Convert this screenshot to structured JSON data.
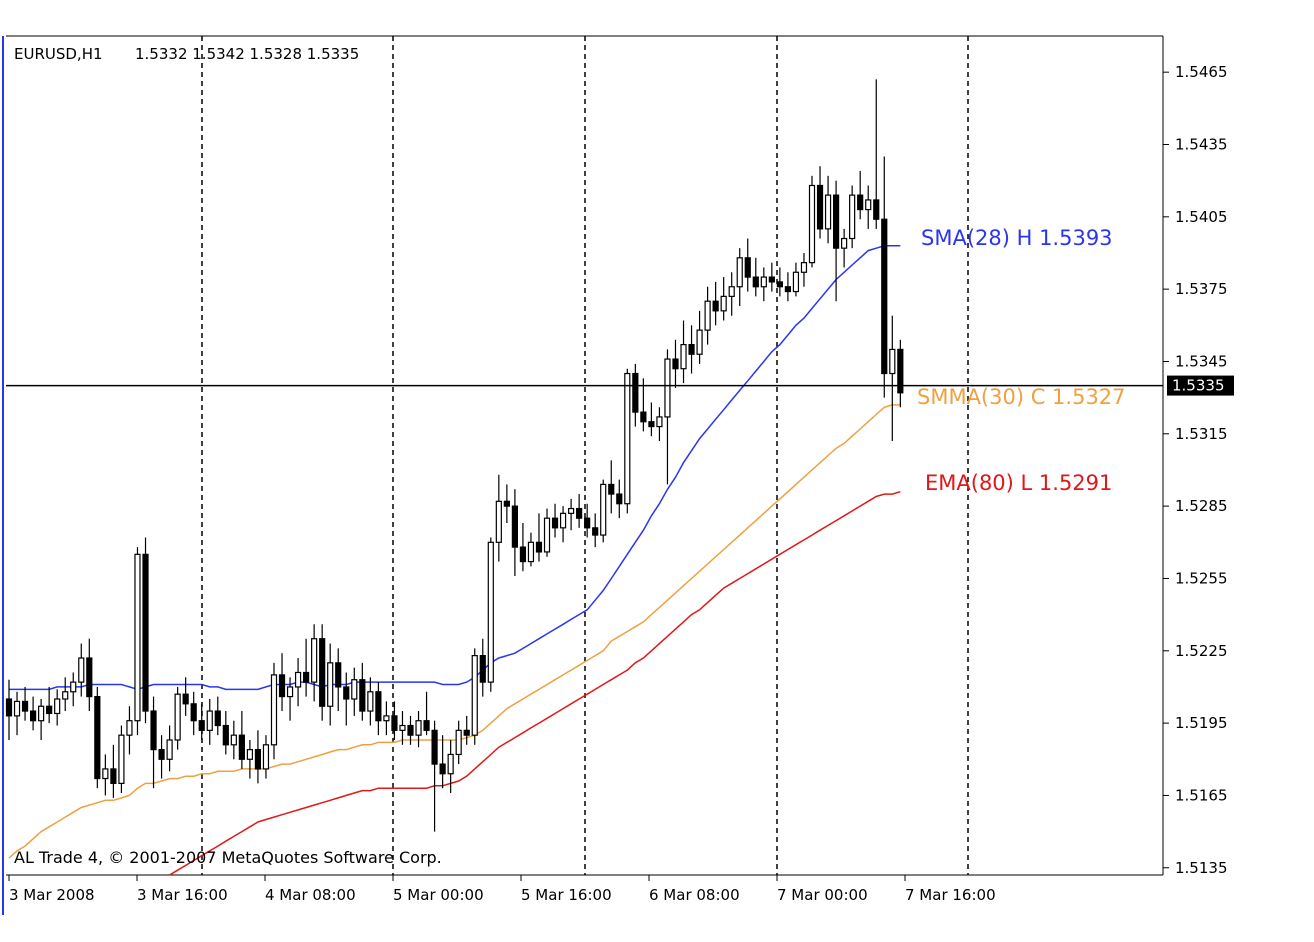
{
  "header": {
    "symbol": "EURUSD,H1",
    "ohlc": "1.5332 1.5342 1.5328 1.5335"
  },
  "footer": {
    "copyright": "AL Trade 4, © 2001-2007 MetaQuotes Software Corp."
  },
  "colors": {
    "background": "#ffffff",
    "grid": "#000000",
    "candle": "#000000",
    "sma": "#2a35f0",
    "smma": "#f0a040",
    "ema": "#e01818",
    "price_line": "#000000",
    "price_badge": "#000000"
  },
  "chart_data": {
    "type": "candlestick",
    "grid": "vertical dashed",
    "ylim": [
      1.5132,
      1.548
    ],
    "y_ticks": [
      "1.5465",
      "1.5435",
      "1.5405",
      "1.5375",
      "1.5345",
      "1.5315",
      "1.5285",
      "1.5255",
      "1.5225",
      "1.5195",
      "1.5165",
      "1.5135"
    ],
    "x_ticks": [
      "3 Mar 2008",
      "3 Mar 16:00",
      "4 Mar 08:00",
      "5 Mar 00:00",
      "5 Mar 16:00",
      "6 Mar 08:00",
      "7 Mar 00:00",
      "7 Mar 16:00"
    ],
    "current_price": "1.5335",
    "candles": [
      [
        1.5205,
        1.5213,
        1.5188,
        1.5198
      ],
      [
        1.5198,
        1.5208,
        1.519,
        1.5204
      ],
      [
        1.5204,
        1.521,
        1.5196,
        1.52
      ],
      [
        1.52,
        1.5206,
        1.5192,
        1.5196
      ],
      [
        1.5196,
        1.5205,
        1.5188,
        1.5202
      ],
      [
        1.5202,
        1.521,
        1.5195,
        1.5199
      ],
      [
        1.5199,
        1.5209,
        1.5194,
        1.5205
      ],
      [
        1.5205,
        1.5214,
        1.52,
        1.5208
      ],
      [
        1.5208,
        1.5216,
        1.5202,
        1.5212
      ],
      [
        1.5212,
        1.5228,
        1.5206,
        1.5222
      ],
      [
        1.5222,
        1.523,
        1.52,
        1.5206
      ],
      [
        1.5206,
        1.521,
        1.5168,
        1.5172
      ],
      [
        1.5172,
        1.5182,
        1.5165,
        1.5176
      ],
      [
        1.5176,
        1.5186,
        1.5164,
        1.517
      ],
      [
        1.517,
        1.5194,
        1.5166,
        1.519
      ],
      [
        1.519,
        1.5202,
        1.5182,
        1.5196
      ],
      [
        1.5196,
        1.5268,
        1.519,
        1.5265
      ],
      [
        1.5265,
        1.5272,
        1.5195,
        1.52
      ],
      [
        1.52,
        1.5206,
        1.5168,
        1.5184
      ],
      [
        1.5184,
        1.519,
        1.5172,
        1.518
      ],
      [
        1.518,
        1.5194,
        1.5175,
        1.5188
      ],
      [
        1.5188,
        1.521,
        1.5184,
        1.5207
      ],
      [
        1.5207,
        1.5214,
        1.5198,
        1.5203
      ],
      [
        1.5203,
        1.5208,
        1.519,
        1.5196
      ],
      [
        1.5196,
        1.5203,
        1.5188,
        1.5192
      ],
      [
        1.5192,
        1.5205,
        1.5186,
        1.52
      ],
      [
        1.52,
        1.5206,
        1.519,
        1.5194
      ],
      [
        1.5194,
        1.52,
        1.5182,
        1.5186
      ],
      [
        1.5186,
        1.5196,
        1.518,
        1.519
      ],
      [
        1.519,
        1.52,
        1.5176,
        1.518
      ],
      [
        1.518,
        1.5188,
        1.5172,
        1.5184
      ],
      [
        1.5184,
        1.5192,
        1.517,
        1.5176
      ],
      [
        1.5176,
        1.519,
        1.5172,
        1.5186
      ],
      [
        1.5186,
        1.522,
        1.518,
        1.5215
      ],
      [
        1.5215,
        1.5224,
        1.52,
        1.5206
      ],
      [
        1.5206,
        1.5214,
        1.5196,
        1.521
      ],
      [
        1.521,
        1.5222,
        1.5202,
        1.5216
      ],
      [
        1.5216,
        1.523,
        1.5206,
        1.5212
      ],
      [
        1.5212,
        1.5236,
        1.5204,
        1.523
      ],
      [
        1.523,
        1.5236,
        1.5196,
        1.5202
      ],
      [
        1.5202,
        1.5228,
        1.5194,
        1.522
      ],
      [
        1.522,
        1.5226,
        1.52,
        1.521
      ],
      [
        1.521,
        1.5216,
        1.5194,
        1.5205
      ],
      [
        1.5205,
        1.5218,
        1.5198,
        1.5213
      ],
      [
        1.5213,
        1.522,
        1.5196,
        1.52
      ],
      [
        1.52,
        1.5214,
        1.5194,
        1.5208
      ],
      [
        1.5208,
        1.5212,
        1.519,
        1.5196
      ],
      [
        1.5196,
        1.5204,
        1.519,
        1.5198
      ],
      [
        1.5198,
        1.5204,
        1.5188,
        1.5192
      ],
      [
        1.5192,
        1.52,
        1.5186,
        1.5194
      ],
      [
        1.5194,
        1.5198,
        1.5186,
        1.519
      ],
      [
        1.519,
        1.52,
        1.5185,
        1.5196
      ],
      [
        1.5196,
        1.5208,
        1.519,
        1.5192
      ],
      [
        1.5192,
        1.5196,
        1.515,
        1.5178
      ],
      [
        1.5178,
        1.519,
        1.5168,
        1.5174
      ],
      [
        1.5174,
        1.5188,
        1.5166,
        1.5182
      ],
      [
        1.5182,
        1.5196,
        1.5178,
        1.5192
      ],
      [
        1.5192,
        1.5198,
        1.5186,
        1.519
      ],
      [
        1.519,
        1.5226,
        1.5186,
        1.5223
      ],
      [
        1.5223,
        1.523,
        1.5206,
        1.5212
      ],
      [
        1.5212,
        1.5272,
        1.5208,
        1.527
      ],
      [
        1.527,
        1.5298,
        1.5262,
        1.5287
      ],
      [
        1.5287,
        1.5294,
        1.5278,
        1.5285
      ],
      [
        1.5285,
        1.5292,
        1.5256,
        1.5268
      ],
      [
        1.5268,
        1.5278,
        1.5258,
        1.5262
      ],
      [
        1.5262,
        1.5274,
        1.526,
        1.527
      ],
      [
        1.527,
        1.5282,
        1.5262,
        1.5266
      ],
      [
        1.5266,
        1.5284,
        1.5264,
        1.528
      ],
      [
        1.528,
        1.5286,
        1.5272,
        1.5276
      ],
      [
        1.5276,
        1.5285,
        1.527,
        1.5282
      ],
      [
        1.5282,
        1.5288,
        1.5275,
        1.5284
      ],
      [
        1.5284,
        1.529,
        1.5276,
        1.528
      ],
      [
        1.528,
        1.5286,
        1.5272,
        1.5276
      ],
      [
        1.5276,
        1.5282,
        1.5268,
        1.5273
      ],
      [
        1.5273,
        1.5296,
        1.527,
        1.5294
      ],
      [
        1.5294,
        1.5304,
        1.5282,
        1.529
      ],
      [
        1.529,
        1.5296,
        1.528,
        1.5286
      ],
      [
        1.5286,
        1.5342,
        1.5282,
        1.534
      ],
      [
        1.534,
        1.5344,
        1.5318,
        1.5324
      ],
      [
        1.5324,
        1.5338,
        1.5316,
        1.532
      ],
      [
        1.532,
        1.5328,
        1.5314,
        1.5318
      ],
      [
        1.5318,
        1.5326,
        1.5312,
        1.5322
      ],
      [
        1.5322,
        1.535,
        1.5294,
        1.5346
      ],
      [
        1.5346,
        1.5354,
        1.5334,
        1.5342
      ],
      [
        1.5342,
        1.5362,
        1.5336,
        1.5352
      ],
      [
        1.5352,
        1.536,
        1.534,
        1.5348
      ],
      [
        1.5348,
        1.5366,
        1.5344,
        1.5358
      ],
      [
        1.5358,
        1.5376,
        1.5352,
        1.537
      ],
      [
        1.537,
        1.5378,
        1.536,
        1.5366
      ],
      [
        1.5366,
        1.538,
        1.5362,
        1.5372
      ],
      [
        1.5372,
        1.5382,
        1.5364,
        1.5376
      ],
      [
        1.5376,
        1.5392,
        1.5368,
        1.5388
      ],
      [
        1.5388,
        1.5396,
        1.5374,
        1.538
      ],
      [
        1.538,
        1.5388,
        1.5372,
        1.5376
      ],
      [
        1.5376,
        1.5384,
        1.537,
        1.538
      ],
      [
        1.538,
        1.5386,
        1.5374,
        1.5378
      ],
      [
        1.5378,
        1.5384,
        1.5372,
        1.5376
      ],
      [
        1.5376,
        1.5382,
        1.537,
        1.5374
      ],
      [
        1.5374,
        1.5386,
        1.5372,
        1.5382
      ],
      [
        1.5382,
        1.539,
        1.5376,
        1.5386
      ],
      [
        1.5386,
        1.5422,
        1.5384,
        1.5418
      ],
      [
        1.5418,
        1.5426,
        1.5396,
        1.54
      ],
      [
        1.54,
        1.5422,
        1.5394,
        1.5414
      ],
      [
        1.5414,
        1.542,
        1.537,
        1.5392
      ],
      [
        1.5392,
        1.54,
        1.5384,
        1.5396
      ],
      [
        1.5396,
        1.5418,
        1.5392,
        1.5414
      ],
      [
        1.5414,
        1.5424,
        1.5404,
        1.5408
      ],
      [
        1.5408,
        1.5418,
        1.54,
        1.5412
      ],
      [
        1.5412,
        1.5462,
        1.54,
        1.5404
      ],
      [
        1.5404,
        1.543,
        1.533,
        1.534
      ],
      [
        1.534,
        1.5364,
        1.5312,
        1.535
      ],
      [
        1.535,
        1.5354,
        1.5326,
        1.5332
      ]
    ],
    "series": [
      {
        "name": "SMA(28) H",
        "value_label": "1.5393",
        "values": [
          1.5209,
          1.5209,
          1.5209,
          1.5209,
          1.5209,
          1.5209,
          1.521,
          1.521,
          1.521,
          1.521,
          1.5211,
          1.5211,
          1.5211,
          1.5211,
          1.5211,
          1.521,
          1.5209,
          1.521,
          1.5211,
          1.5211,
          1.5211,
          1.5211,
          1.5211,
          1.5211,
          1.5211,
          1.521,
          1.521,
          1.5209,
          1.5209,
          1.5209,
          1.5209,
          1.5209,
          1.521,
          1.5211,
          1.5211,
          1.5211,
          1.5212,
          1.5212,
          1.5211,
          1.521,
          1.5211,
          1.5211,
          1.5211,
          1.5212,
          1.5212,
          1.5212,
          1.5212,
          1.5212,
          1.5212,
          1.5212,
          1.5212,
          1.5212,
          1.5212,
          1.5212,
          1.5211,
          1.5211,
          1.5211,
          1.5212,
          1.5214,
          1.5217,
          1.522,
          1.5222,
          1.5223,
          1.5224,
          1.5226,
          1.5228,
          1.523,
          1.5232,
          1.5234,
          1.5236,
          1.5238,
          1.524,
          1.5242,
          1.5246,
          1.525,
          1.5255,
          1.526,
          1.5265,
          1.527,
          1.5275,
          1.5281,
          1.5286,
          1.5292,
          1.5297,
          1.5303,
          1.5308,
          1.5313,
          1.5317,
          1.5321,
          1.5325,
          1.5329,
          1.5333,
          1.5337,
          1.5341,
          1.5345,
          1.5349,
          1.5352,
          1.5356,
          1.536,
          1.5363,
          1.5367,
          1.5371,
          1.5375,
          1.5379,
          1.5382,
          1.5385,
          1.5388,
          1.5391,
          1.5392,
          1.5393,
          1.5393,
          1.5393
        ]
      },
      {
        "name": "SMMA(30) C",
        "value_label": "1.5327",
        "values": [
          1.5139,
          1.5142,
          1.5144,
          1.5147,
          1.515,
          1.5152,
          1.5154,
          1.5156,
          1.5158,
          1.516,
          1.5161,
          1.5162,
          1.5163,
          1.5163,
          1.5164,
          1.5165,
          1.5168,
          1.517,
          1.517,
          1.5171,
          1.5172,
          1.5172,
          1.5173,
          1.5173,
          1.5174,
          1.5174,
          1.5175,
          1.5175,
          1.5175,
          1.5176,
          1.5176,
          1.5176,
          1.5176,
          1.5177,
          1.5178,
          1.5178,
          1.5179,
          1.518,
          1.5181,
          1.5182,
          1.5183,
          1.5184,
          1.5184,
          1.5185,
          1.5186,
          1.5186,
          1.5187,
          1.5187,
          1.5187,
          1.5188,
          1.5188,
          1.5188,
          1.5188,
          1.5188,
          1.5188,
          1.5188,
          1.5188,
          1.5189,
          1.519,
          1.5192,
          1.5195,
          1.5198,
          1.5201,
          1.5203,
          1.5205,
          1.5207,
          1.5209,
          1.5211,
          1.5213,
          1.5215,
          1.5217,
          1.5219,
          1.5221,
          1.5223,
          1.5225,
          1.5229,
          1.5231,
          1.5233,
          1.5235,
          1.5237,
          1.524,
          1.5243,
          1.5246,
          1.5249,
          1.5252,
          1.5255,
          1.5258,
          1.5261,
          1.5264,
          1.5267,
          1.527,
          1.5273,
          1.5276,
          1.5279,
          1.5282,
          1.5285,
          1.5288,
          1.5291,
          1.5294,
          1.5297,
          1.53,
          1.5303,
          1.5306,
          1.5309,
          1.5311,
          1.5314,
          1.5317,
          1.532,
          1.5323,
          1.5326,
          1.5327,
          1.5327
        ]
      },
      {
        "name": "EMA(80) L",
        "value_label": "1.5291",
        "values": [
          null,
          null,
          null,
          null,
          null,
          null,
          null,
          null,
          null,
          null,
          null,
          null,
          null,
          null,
          null,
          null,
          null,
          null,
          null,
          null,
          1.5132,
          1.5134,
          1.5136,
          1.5138,
          1.514,
          1.5142,
          1.5144,
          1.5146,
          1.5148,
          1.515,
          1.5152,
          1.5154,
          1.5155,
          1.5156,
          1.5157,
          1.5158,
          1.5159,
          1.516,
          1.5161,
          1.5162,
          1.5163,
          1.5164,
          1.5165,
          1.5166,
          1.5167,
          1.5167,
          1.5168,
          1.5168,
          1.5168,
          1.5168,
          1.5168,
          1.5168,
          1.5168,
          1.5169,
          1.5169,
          1.517,
          1.5171,
          1.5173,
          1.5176,
          1.5179,
          1.5182,
          1.5185,
          1.5187,
          1.5189,
          1.5191,
          1.5193,
          1.5195,
          1.5197,
          1.5199,
          1.5201,
          1.5203,
          1.5205,
          1.5207,
          1.5209,
          1.5211,
          1.5213,
          1.5215,
          1.5217,
          1.522,
          1.5222,
          1.5225,
          1.5228,
          1.5231,
          1.5234,
          1.5237,
          1.524,
          1.5242,
          1.5245,
          1.5248,
          1.5251,
          1.5253,
          1.5255,
          1.5257,
          1.5259,
          1.5261,
          1.5263,
          1.5265,
          1.5267,
          1.5269,
          1.5271,
          1.5273,
          1.5275,
          1.5277,
          1.5279,
          1.5281,
          1.5283,
          1.5285,
          1.5287,
          1.5289,
          1.529,
          1.529,
          1.5291
        ]
      }
    ]
  }
}
